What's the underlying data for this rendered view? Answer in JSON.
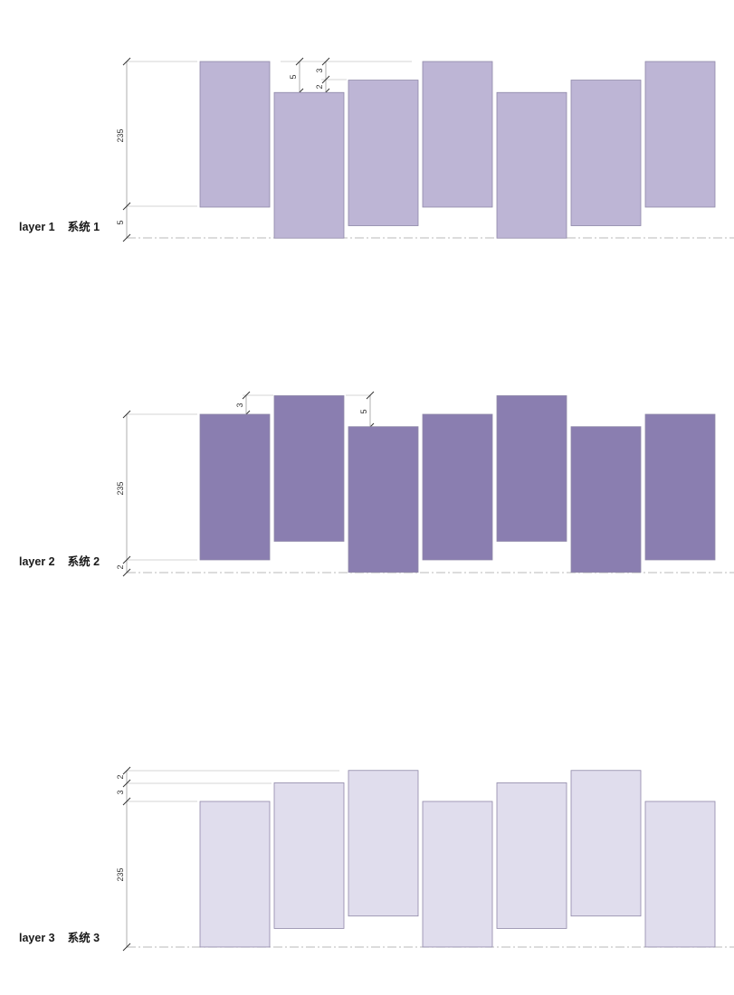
{
  "colors": {
    "layer1_fill": "#bdb5d5",
    "layer2_fill": "#8a7eb0",
    "layer3_fill": "#e0dded",
    "outline": "#8f88a8",
    "dimension_line": "#9c9c9c",
    "baseline": "#b8b8b8"
  },
  "layers": [
    {
      "id": "layer-1",
      "label_en": "layer 1",
      "label_cn": "系统 1",
      "panel_height": 23.5,
      "panel_offsets": [
        0,
        -5,
        -3,
        0,
        -5,
        -3,
        0
      ],
      "dims": {
        "height": "235",
        "bottom_gap": "5",
        "step_a": "5",
        "step_b": "3",
        "step_c": "2"
      }
    },
    {
      "id": "layer-2",
      "label_en": "layer 2",
      "label_cn": "系统 2",
      "panel_height": 23.5,
      "panel_offsets": [
        0,
        3,
        -2,
        0,
        3,
        -2,
        0
      ],
      "dims": {
        "height": "235",
        "bottom_gap": "2",
        "step_a": "3",
        "step_b": "5"
      }
    },
    {
      "id": "layer-3",
      "label_en": "layer 3",
      "label_cn": "系统 3",
      "panel_height": 23.5,
      "panel_offsets": [
        0,
        3,
        5,
        0,
        3,
        5,
        0
      ],
      "dims": {
        "height": "235",
        "top_gap_a": "2",
        "top_gap_b": "3"
      }
    }
  ]
}
